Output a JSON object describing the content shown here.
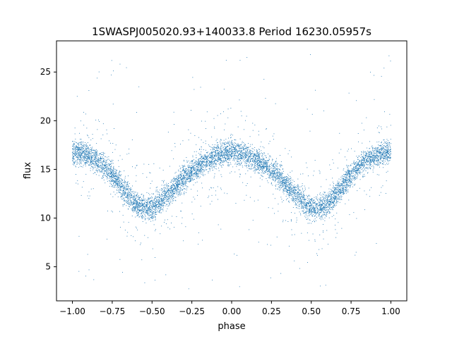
{
  "chart_data": {
    "type": "scatter",
    "title": "1SWASPJ005020.93+140033.8 Period 16230.05957s",
    "xlabel": "phase",
    "ylabel": "flux",
    "xlim": [
      -1.1,
      1.1
    ],
    "ylim": [
      1.5,
      28.2
    ],
    "xticks": [
      -1.0,
      -0.75,
      -0.5,
      -0.25,
      0.0,
      0.25,
      0.5,
      0.75,
      1.0
    ],
    "xtick_labels": [
      "−1.00",
      "−0.75",
      "−0.50",
      "−0.25",
      "0.00",
      "0.25",
      "0.50",
      "0.75",
      "1.00"
    ],
    "yticks": [
      5,
      10,
      15,
      20,
      25
    ],
    "ytick_labels": [
      "5",
      "10",
      "15",
      "20",
      "25"
    ],
    "grid": false,
    "legend": "none",
    "point_color": "#1f77b4",
    "model": {
      "description": "phase-folded light curve, points symmetric about phase 0",
      "phase_range": [
        -1.0,
        1.0
      ],
      "curve_points": [
        [
          0.0,
          16.9
        ],
        [
          0.1,
          16.4
        ],
        [
          0.2,
          15.5
        ],
        [
          0.3,
          14.2
        ],
        [
          0.4,
          12.4
        ],
        [
          0.5,
          11.0
        ],
        [
          0.6,
          11.3
        ],
        [
          0.7,
          13.4
        ],
        [
          0.8,
          15.4
        ],
        [
          0.9,
          16.4
        ],
        [
          1.0,
          16.8
        ]
      ],
      "band_half_width": 1.1,
      "outlier_range": [
        2.7,
        26.8
      ]
    }
  }
}
